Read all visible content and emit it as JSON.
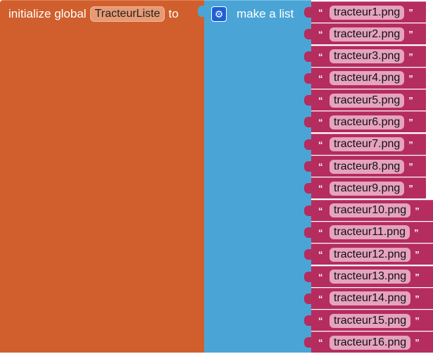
{
  "init_block": {
    "prefix": "initialize global",
    "variable_name": "TracteurListe",
    "suffix": "to"
  },
  "list_block": {
    "label": "make a list",
    "icon": "gear-icon"
  },
  "open_quote": "“",
  "close_quote": "”",
  "items": [
    "tracteur1.png",
    "tracteur2.png",
    "tracteur3.png",
    "tracteur4.png",
    "tracteur5.png",
    "tracteur6.png",
    "tracteur7.png",
    "tracteur8.png",
    "tracteur9.png",
    "tracteur10.png",
    "tracteur11.png",
    "tracteur12.png",
    "tracteur13.png",
    "tracteur14.png",
    "tracteur15.png",
    "tracteur16.png"
  ],
  "colors": {
    "variables": "#d05f2d",
    "lists": "#4aa5d6",
    "text": "#b42d5e"
  }
}
